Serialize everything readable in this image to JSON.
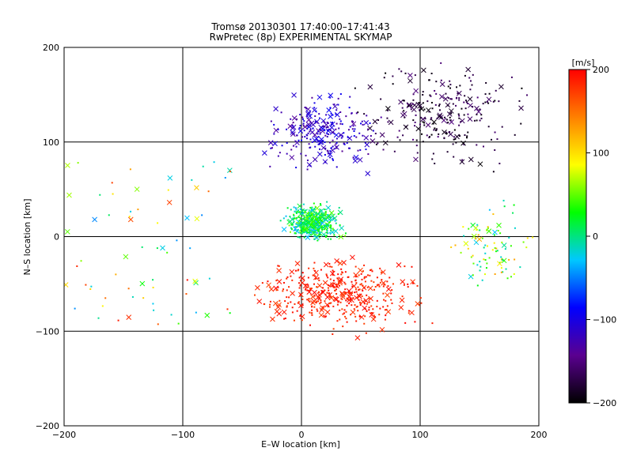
{
  "chart_data": {
    "type": "scatter",
    "title": "Tromsø 20130301 17:40:00–17:41:43",
    "subtitle": "RwPretec (8p) EXPERIMENTAL SKYMAP",
    "xlabel": "E–W location [km]",
    "ylabel": "N–S location [km]",
    "xlim": [
      -200,
      200
    ],
    "ylim": [
      -200,
      200
    ],
    "xticks": [
      -200,
      -100,
      0,
      100,
      200
    ],
    "yticks": [
      -200,
      -100,
      0,
      100,
      200
    ],
    "grid": true,
    "markers": [
      "dot",
      "x"
    ],
    "colorbar": {
      "label": "[m/s]",
      "min": -200,
      "max": 200,
      "ticks": [
        -200,
        -100,
        0,
        100,
        200
      ],
      "colors": [
        "#000000",
        "#5a0090",
        "#0000ff",
        "#00c8ff",
        "#00ff00",
        "#ffff00",
        "#ff8000",
        "#ff0000"
      ]
    },
    "clusters": [
      {
        "region": "north-east",
        "x": [
          30,
          200
        ],
        "y": [
          60,
          200
        ],
        "velocity": [
          -200,
          -150
        ],
        "density": "high"
      },
      {
        "region": "north-center",
        "x": [
          -40,
          80
        ],
        "y": [
          60,
          160
        ],
        "velocity": [
          -140,
          -90
        ],
        "density": "high"
      },
      {
        "region": "center",
        "x": [
          -20,
          40
        ],
        "y": [
          -10,
          40
        ],
        "velocity": [
          -40,
          60
        ],
        "density": "very high"
      },
      {
        "region": "south-center",
        "x": [
          -60,
          120
        ],
        "y": [
          -110,
          -10
        ],
        "velocity": [
          170,
          200
        ],
        "density": "very high"
      },
      {
        "region": "west",
        "x": [
          -200,
          -60
        ],
        "y": [
          -100,
          80
        ],
        "velocity": [
          -50,
          200
        ],
        "density": "sparse"
      },
      {
        "region": "east",
        "x": [
          120,
          200
        ],
        "y": [
          -70,
          50
        ],
        "velocity": [
          -30,
          130
        ],
        "density": "medium"
      }
    ]
  }
}
